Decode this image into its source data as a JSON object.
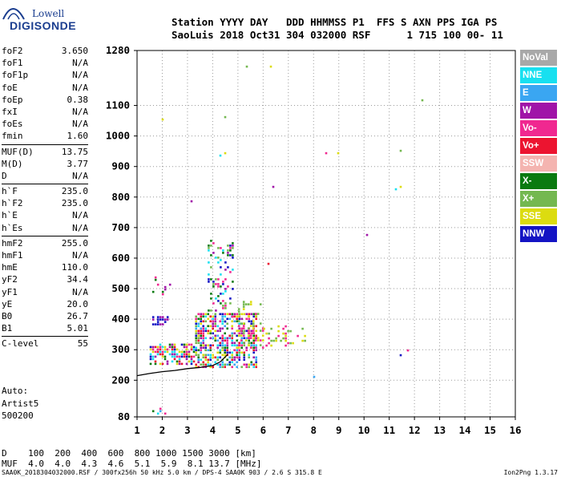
{
  "logo": {
    "line1": "Lowell",
    "line2": "DIGISONDE"
  },
  "header": {
    "labels": "Station YYYY DAY   DDD HHMMSS P1  FFS S AXN PPS IGA PS",
    "values": "SaoLuis 2018 Oct31 304 032000 RSF      1 715 100 00- 11"
  },
  "params": [
    {
      "name": "foF2",
      "value": "3.650"
    },
    {
      "name": "foF1",
      "value": "N/A"
    },
    {
      "name": "foF1p",
      "value": "N/A"
    },
    {
      "name": "foE",
      "value": "N/A"
    },
    {
      "name": "foEp",
      "value": "0.38"
    },
    {
      "name": "fxI",
      "value": "N/A"
    },
    {
      "name": "foEs",
      "value": "N/A"
    },
    {
      "name": "fmin",
      "value": "1.60"
    },
    {
      "name": "MUF(D)",
      "value": "13.75",
      "sep": true
    },
    {
      "name": "M(D)",
      "value": "3.77"
    },
    {
      "name": "D",
      "value": "N/A"
    },
    {
      "name": "h`F",
      "value": "235.0",
      "sep": true
    },
    {
      "name": "h`F2",
      "value": "235.0"
    },
    {
      "name": "h`E",
      "value": "N/A"
    },
    {
      "name": "h`Es",
      "value": "N/A"
    },
    {
      "name": "hmF2",
      "value": "255.0",
      "sep": true
    },
    {
      "name": "hmF1",
      "value": "N/A"
    },
    {
      "name": "hmE",
      "value": "110.0"
    },
    {
      "name": "yF2",
      "value": "34.4"
    },
    {
      "name": "yF1",
      "value": "N/A"
    },
    {
      "name": "yE",
      "value": "20.0"
    },
    {
      "name": "B0",
      "value": "26.7"
    },
    {
      "name": "B1",
      "value": "5.01"
    },
    {
      "name": "C-level",
      "value": "55",
      "sep": true
    }
  ],
  "autoscaling": {
    "line1": "Auto:",
    "line2": "Artist5",
    "line3": "500200"
  },
  "legend": [
    {
      "label": "NoVal",
      "color": "#a8a8a8"
    },
    {
      "label": "NNE",
      "color": "#18e0f0"
    },
    {
      "label": "E",
      "color": "#3aa6f2"
    },
    {
      "label": "W",
      "color": "#a014a8"
    },
    {
      "label": "Vo-",
      "color": "#f02890"
    },
    {
      "label": "Vo+",
      "color": "#ec1430"
    },
    {
      "label": "SSW",
      "color": "#f4b4b0"
    },
    {
      "label": "X-",
      "color": "#0a7a10"
    },
    {
      "label": "X+",
      "color": "#74b850"
    },
    {
      "label": "SSE",
      "color": "#dcdc10"
    },
    {
      "label": "NNW",
      "color": "#1414c4"
    }
  ],
  "muf_table": {
    "row1": "D    100  200  400  600  800 1000 1500 3000 [km]",
    "row2": "MUF  4.0  4.0  4.3  4.6  5.1  5.9  8.1 13.7 [MHz]"
  },
  "footer": {
    "left": "SAA0K_2018304032000.RSF / 300fx256h 50 kHz 5.0 km / DPS-4 SAA0K 903 / 2.6 S 315.8 E",
    "right": "Ion2Png 1.3.17"
  },
  "chart_data": {
    "type": "scatter",
    "xlim": [
      1,
      16
    ],
    "ylim": [
      80,
      1280
    ],
    "xticks": [
      1,
      2,
      3,
      4,
      5,
      6,
      7,
      8,
      9,
      10,
      11,
      12,
      13,
      14,
      15,
      16
    ],
    "yticks": [
      80,
      200,
      300,
      400,
      500,
      600,
      700,
      800,
      900,
      1000,
      1100,
      1280
    ],
    "grid": true,
    "legend_position": "right",
    "trace_curve": {
      "x": [
        1.0,
        1.5,
        2.0,
        2.5,
        3.0,
        3.5,
        4.0,
        4.3,
        4.6
      ],
      "y": [
        215,
        222,
        228,
        232,
        238,
        242,
        248,
        260,
        285
      ]
    },
    "echo_clusters": [
      {
        "x": [
          1.5,
          3.3
        ],
        "y": [
          255,
          320
        ],
        "density": 0.55,
        "colors": [
          "Vo-",
          "W",
          "X-",
          "NNW",
          "SSE",
          "Vo+",
          "NNE"
        ]
      },
      {
        "x": [
          3.3,
          5.7
        ],
        "y": [
          245,
          420
        ],
        "density": 0.6,
        "colors": [
          "Vo-",
          "W",
          "X-",
          "NNW",
          "SSE",
          "Vo+",
          "NNE",
          "X+",
          "E"
        ]
      },
      {
        "x": [
          3.8,
          4.8
        ],
        "y": [
          420,
          660
        ],
        "density": 0.22,
        "colors": [
          "W",
          "X-",
          "NNW",
          "Vo-",
          "NNE",
          "X+"
        ]
      },
      {
        "x": [
          5.0,
          6.0
        ],
        "y": [
          300,
          460
        ],
        "density": 0.25,
        "colors": [
          "SSE",
          "X+",
          "Vo-"
        ]
      },
      {
        "x": [
          6.0,
          7.8
        ],
        "y": [
          310,
          380
        ],
        "density": 0.18,
        "colors": [
          "SSE",
          "Vo-",
          "X+"
        ]
      },
      {
        "x": [
          1.6,
          2.2
        ],
        "y": [
          380,
          410
        ],
        "density": 0.45,
        "colors": [
          "NNW",
          "W"
        ]
      },
      {
        "x": [
          1.6,
          2.3
        ],
        "y": [
          480,
          540
        ],
        "density": 0.2,
        "colors": [
          "W",
          "Vo-",
          "X-"
        ]
      },
      {
        "x": [
          1.6,
          2.1
        ],
        "y": [
          88,
          110
        ],
        "density": 0.35,
        "colors": [
          "NNE",
          "E",
          "X-",
          "Vo-"
        ]
      },
      {
        "x": [
          1.5,
          12.5
        ],
        "y": [
          150,
          1270
        ],
        "density": 0.0009,
        "colors": [
          "W",
          "NNE",
          "Vo-",
          "X-",
          "E",
          "SSE",
          "X+",
          "Vo+",
          "NNW"
        ]
      }
    ]
  }
}
